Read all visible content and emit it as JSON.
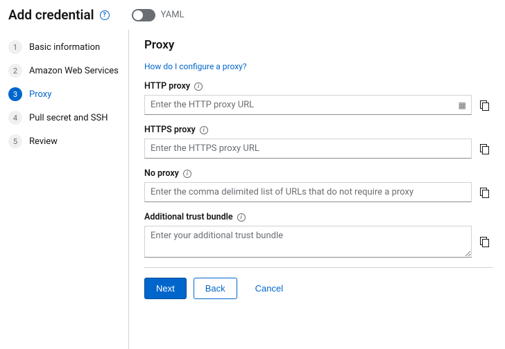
{
  "header": {
    "title": "Add credential",
    "toggle_label": "YAML",
    "toggle_on": false
  },
  "sidebar": {
    "steps": [
      {
        "num": "1",
        "label": "Basic information",
        "current": false
      },
      {
        "num": "2",
        "label": "Amazon Web Services",
        "current": false
      },
      {
        "num": "3",
        "label": "Proxy",
        "current": true
      },
      {
        "num": "4",
        "label": "Pull secret and SSH",
        "current": false
      },
      {
        "num": "5",
        "label": "Review",
        "current": false
      }
    ]
  },
  "main": {
    "heading": "Proxy",
    "help_link": "How do I configure a proxy?",
    "fields": {
      "http": {
        "label": "HTTP proxy",
        "placeholder": "Enter the HTTP proxy URL",
        "value": ""
      },
      "https": {
        "label": "HTTPS proxy",
        "placeholder": "Enter the HTTPS proxy URL",
        "value": ""
      },
      "noproxy": {
        "label": "No proxy",
        "placeholder": "Enter the comma delimited list of URLs that do not require a proxy",
        "value": ""
      },
      "trust": {
        "label": "Additional trust bundle",
        "placeholder": "Enter your additional trust bundle",
        "value": ""
      }
    }
  },
  "footer": {
    "next": "Next",
    "back": "Back",
    "cancel": "Cancel"
  },
  "colors": {
    "accent": "#0066cc",
    "border": "#d2d2d2",
    "muted": "#6a6e73"
  }
}
